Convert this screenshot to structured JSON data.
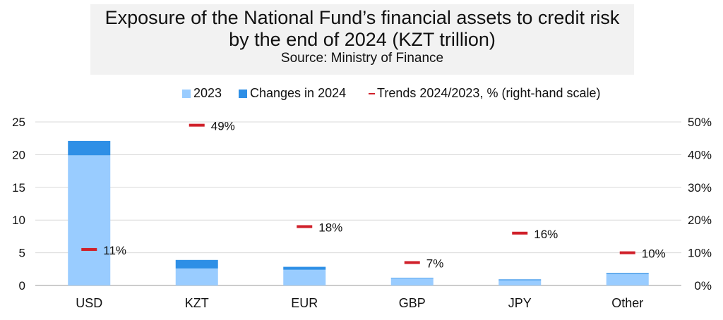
{
  "chart_data": {
    "type": "bar",
    "title": "Exposure of the National Fund’s financial assets to credit risk",
    "title_line2": "by the end of 2024 (KZT trillion)",
    "subtitle": "Source: Ministry of Finance",
    "categories": [
      "USD",
      "KZT",
      "EUR",
      "GBP",
      "JPY",
      "Other"
    ],
    "stacked": true,
    "series": [
      {
        "name": "2023",
        "color": "#99ccff",
        "values": [
          19.9,
          2.6,
          2.4,
          1.1,
          0.8,
          1.75
        ]
      },
      {
        "name": "Changes in 2024",
        "color": "#2e8fe6",
        "values": [
          2.2,
          1.3,
          0.45,
          0.08,
          0.13,
          0.15
        ]
      },
      {
        "name": "Trends 2024/2023, % (right-hand scale)",
        "axis": "right",
        "marker": "dash",
        "color": "#d0202a",
        "values": [
          11,
          49,
          18,
          7,
          16,
          10
        ],
        "labels": [
          "11%",
          "49%",
          "18%",
          "7%",
          "16%",
          "10%"
        ]
      }
    ],
    "ylim": [
      0,
      25
    ],
    "yticks": [
      "0",
      "5",
      "10",
      "15",
      "20",
      "25"
    ],
    "y2lim": [
      0,
      50
    ],
    "y2ticks": [
      "0%",
      "10%",
      "20%",
      "30%",
      "40%",
      "50%"
    ],
    "grid": true,
    "legend_position": "top"
  }
}
